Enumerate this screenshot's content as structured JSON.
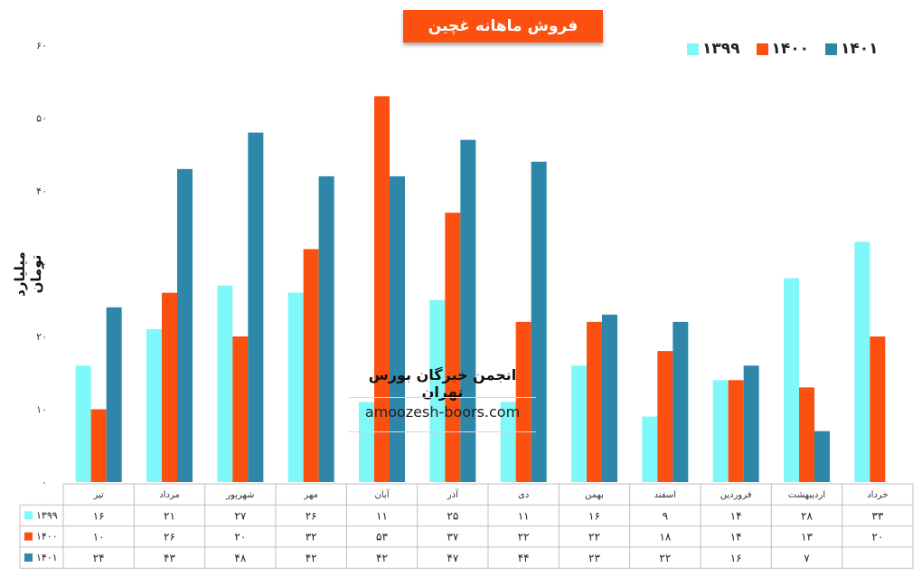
{
  "chart_data": {
    "type": "bar",
    "title": "فروش ماهانه غچین",
    "ylabel": "میلیارد تومان",
    "xlabel": "",
    "ylim": [
      0,
      60
    ],
    "yticks": [
      "۰",
      "۱۰",
      "۲۰",
      "۳۰",
      "۴۰",
      "۵۰",
      "۶۰"
    ],
    "grid": false,
    "legend_position": "top-right",
    "categories": [
      "تیر",
      "مرداد",
      "شهریور",
      "مهر",
      "آبان",
      "آذر",
      "دی",
      "بهمن",
      "اسفند",
      "فروردین",
      "اردیبهشت",
      "خرداد"
    ],
    "series": [
      {
        "name": "۱۳۹۹",
        "color": "#7ff8fa",
        "values": [
          16,
          21,
          27,
          26,
          11,
          25,
          11,
          16,
          9,
          14,
          28,
          33
        ],
        "labels": [
          "۱۶",
          "۲۱",
          "۲۷",
          "۲۶",
          "۱۱",
          "۲۵",
          "۱۱",
          "۱۶",
          "۹",
          "۱۴",
          "۲۸",
          "۳۳"
        ]
      },
      {
        "name": "۱۴۰۰",
        "color": "#fc5010",
        "values": [
          10,
          26,
          20,
          32,
          53,
          37,
          22,
          22,
          18,
          14,
          13,
          20
        ],
        "labels": [
          "۱۰",
          "۲۶",
          "۲۰",
          "۳۲",
          "۵۳",
          "۳۷",
          "۲۲",
          "۲۲",
          "۱۸",
          "۱۴",
          "۱۳",
          "۲۰"
        ]
      },
      {
        "name": "۱۴۰۱",
        "color": "#2e87a8",
        "values": [
          24,
          43,
          48,
          42,
          42,
          47,
          44,
          23,
          22,
          16,
          7,
          null
        ],
        "labels": [
          "۲۴",
          "۴۳",
          "۴۸",
          "۴۲",
          "۴۲",
          "۴۷",
          "۴۴",
          "۲۳",
          "۲۲",
          "۱۶",
          "۷",
          ""
        ]
      }
    ]
  },
  "watermark": {
    "title": "انجمن خبرگان بورس تهران",
    "url": "amoozesh-boors.com"
  }
}
